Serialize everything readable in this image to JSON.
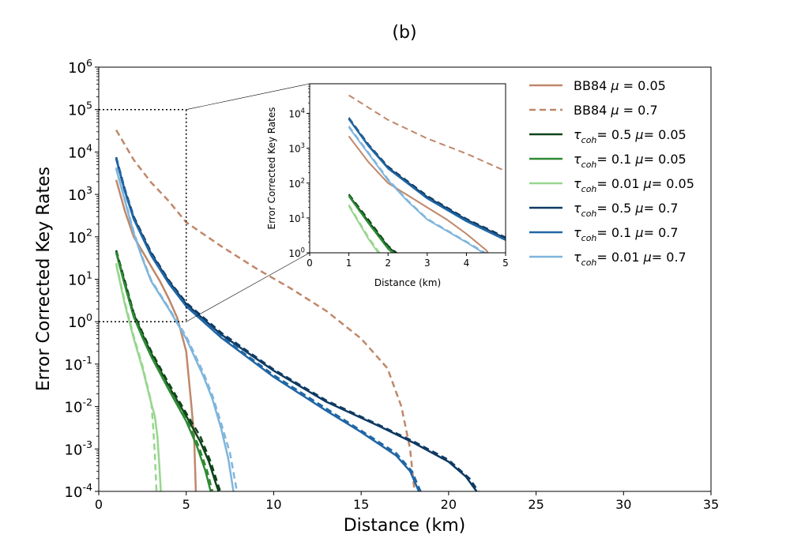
{
  "chart_data": {
    "type": "line",
    "title": "(b)",
    "xlabel": "Distance (km)",
    "ylabel": "Error Corrected Key Rates",
    "xlim": [
      0,
      35
    ],
    "ylim_log10": [
      -4,
      6
    ],
    "yscale": "log",
    "grid": false,
    "legend_position": "top-right",
    "xticks": [
      "0",
      "5",
      "10",
      "15",
      "20",
      "25",
      "30",
      "35"
    ],
    "yticks": [
      "10-4",
      "10-3",
      "10-2",
      "10-1",
      "100",
      "101",
      "102",
      "103",
      "104",
      "105",
      "106"
    ],
    "zoom_region": {
      "x": [
        0,
        5
      ],
      "y": [
        1,
        100000
      ]
    },
    "series": [
      {
        "name": "BB84 μ = 0.05",
        "legend": [
          "BB84 ",
          "μ",
          " = 0.05"
        ],
        "color": "#c0876a",
        "dash": "solid",
        "points": [
          [
            1,
            2200
          ],
          [
            1.5,
            400
          ],
          [
            2,
            100
          ],
          [
            2.5,
            45
          ],
          [
            3,
            20
          ],
          [
            3.5,
            9
          ],
          [
            4,
            3.5
          ],
          [
            4.5,
            1.2
          ],
          [
            5,
            0.2
          ],
          [
            5.3,
            0.01
          ],
          [
            5.45,
            0.002
          ],
          [
            5.55,
            0.0001
          ]
        ]
      },
      {
        "name": "BB84 μ = 0.7",
        "legend": [
          "BB84 ",
          "μ",
          " = 0.7"
        ],
        "color": "#c0876a",
        "dash": "dashed",
        "points": [
          [
            1,
            33000
          ],
          [
            2,
            6500
          ],
          [
            3,
            1900
          ],
          [
            4,
            700
          ],
          [
            5,
            220
          ],
          [
            7,
            60
          ],
          [
            9,
            18
          ],
          [
            11,
            6
          ],
          [
            13,
            1.8
          ],
          [
            15,
            0.4
          ],
          [
            16.5,
            0.08
          ],
          [
            17.3,
            0.01
          ],
          [
            17.8,
            0.001
          ],
          [
            18.05,
            0.0001
          ]
        ]
      },
      {
        "name": "τcoh= 0.5 μ= 0.05",
        "legend": [
          "τ",
          "coh",
          "= 0.5 ",
          "μ",
          "= 0.05"
        ],
        "color": "#10431a",
        "dash": "solid",
        "points": [
          [
            1,
            45
          ],
          [
            1.5,
            8
          ],
          [
            2,
            1.5
          ],
          [
            2.5,
            0.5
          ],
          [
            3,
            0.18
          ],
          [
            4,
            0.03
          ],
          [
            5,
            0.006
          ],
          [
            5.8,
            0.0015
          ],
          [
            6.3,
            0.0005
          ],
          [
            6.7,
            0.00015
          ],
          [
            6.85,
            0.0001
          ]
        ]
      },
      {
        "name": "τcoh= 0.1 μ= 0.05",
        "legend": [
          "τ",
          "coh",
          "= 0.1 ",
          "μ",
          "= 0.05"
        ],
        "color": "#2e8b34",
        "dash": "solid",
        "points": [
          [
            1,
            42
          ],
          [
            1.5,
            7
          ],
          [
            2,
            1.3
          ],
          [
            2.5,
            0.42
          ],
          [
            3,
            0.15
          ],
          [
            4,
            0.025
          ],
          [
            5,
            0.0045
          ],
          [
            5.6,
            0.0012
          ],
          [
            6.1,
            0.0003
          ],
          [
            6.4,
            0.0001
          ]
        ]
      },
      {
        "name": "τcoh= 0.01 μ= 0.05",
        "legend": [
          "τ",
          "coh",
          "= 0.01 ",
          "μ",
          "= 0.05"
        ],
        "color": "#97d68e",
        "dash": "solid",
        "points": [
          [
            1,
            22
          ],
          [
            1.5,
            2.5
          ],
          [
            2,
            0.4
          ],
          [
            2.5,
            0.08
          ],
          [
            3,
            0.012
          ],
          [
            3.2,
            0.006
          ],
          [
            3.35,
            0.002
          ],
          [
            3.45,
            0.0005
          ],
          [
            3.55,
            0.0001
          ]
        ]
      },
      {
        "name": "τcoh= 0.5 μ= 0.7",
        "legend": [
          "τ",
          "coh",
          "= 0.5 ",
          "μ",
          "= 0.7"
        ],
        "color": "#0e3a63",
        "dash": "solid",
        "points": [
          [
            1,
            7000
          ],
          [
            1.5,
            1200
          ],
          [
            2,
            280
          ],
          [
            3,
            40
          ],
          [
            4,
            9
          ],
          [
            5,
            2.6
          ],
          [
            7,
            0.5
          ],
          [
            10,
            0.07
          ],
          [
            13,
            0.013
          ],
          [
            16,
            0.0035
          ],
          [
            18,
            0.0014
          ],
          [
            20,
            0.0005
          ],
          [
            21,
            0.00022
          ],
          [
            21.6,
            0.0001
          ]
        ]
      },
      {
        "name": "τcoh= 0.1 μ= 0.7",
        "legend": [
          "τ",
          "coh",
          "= 0.1 ",
          "μ",
          "= 0.7"
        ],
        "color": "#2066a5",
        "dash": "solid",
        "points": [
          [
            1,
            6800
          ],
          [
            1.5,
            1150
          ],
          [
            2,
            260
          ],
          [
            3,
            36
          ],
          [
            4,
            8
          ],
          [
            5,
            2.3
          ],
          [
            7,
            0.42
          ],
          [
            10,
            0.05
          ],
          [
            13,
            0.008
          ],
          [
            15,
            0.0025
          ],
          [
            17,
            0.0007
          ],
          [
            17.8,
            0.0003
          ],
          [
            18.3,
            0.0001
          ]
        ]
      },
      {
        "name": "τcoh= 0.01 μ= 0.7",
        "legend": [
          "τ",
          "coh",
          "= 0.01 ",
          "μ",
          "= 0.7"
        ],
        "color": "#7fb5dc",
        "dash": "solid",
        "points": [
          [
            1,
            4000
          ],
          [
            1.5,
            700
          ],
          [
            2,
            120
          ],
          [
            2.5,
            30
          ],
          [
            3,
            9
          ],
          [
            4,
            2
          ],
          [
            5,
            0.4
          ],
          [
            6,
            0.05
          ],
          [
            6.5,
            0.015
          ],
          [
            7,
            0.003
          ],
          [
            7.4,
            0.0006
          ],
          [
            7.7,
            0.0001
          ]
        ]
      },
      {
        "name": "τcoh= 0.5 μ= 0.05 (dashed)",
        "color": "#10431a",
        "dash": "dashed",
        "points": [
          [
            1,
            48
          ],
          [
            1.5,
            9
          ],
          [
            2,
            1.6
          ],
          [
            2.5,
            0.55
          ],
          [
            3,
            0.2
          ],
          [
            4,
            0.035
          ],
          [
            5,
            0.007
          ],
          [
            5.8,
            0.002
          ],
          [
            6.4,
            0.0005
          ],
          [
            6.8,
            0.00015
          ],
          [
            6.95,
            0.0001
          ]
        ]
      },
      {
        "name": "τcoh= 0.1 μ= 0.05 (dashed)",
        "color": "#2e8b34",
        "dash": "dashed",
        "points": [
          [
            1,
            44
          ],
          [
            1.5,
            7.5
          ],
          [
            2,
            1.4
          ],
          [
            2.5,
            0.45
          ],
          [
            3,
            0.16
          ],
          [
            4,
            0.027
          ],
          [
            5,
            0.005
          ],
          [
            5.7,
            0.0012
          ],
          [
            6.2,
            0.0003
          ],
          [
            6.5,
            0.0001
          ]
        ]
      },
      {
        "name": "τcoh= 0.01 μ= 0.05 (dashed)",
        "color": "#97d68e",
        "dash": "dashed",
        "points": [
          [
            1,
            24
          ],
          [
            1.5,
            2.8
          ],
          [
            2,
            0.45
          ],
          [
            2.5,
            0.09
          ],
          [
            3,
            0.013
          ],
          [
            3.1,
            0.004
          ],
          [
            3.2,
            0.0008
          ],
          [
            3.3,
            0.0001
          ]
        ]
      },
      {
        "name": "τcoh= 0.5 μ= 0.7 (dashed)",
        "color": "#0e3a63",
        "dash": "dashed",
        "points": [
          [
            1,
            7500
          ],
          [
            1.5,
            1300
          ],
          [
            2,
            300
          ],
          [
            3,
            43
          ],
          [
            4,
            9.5
          ],
          [
            5,
            2.8
          ],
          [
            7,
            0.55
          ],
          [
            10,
            0.075
          ],
          [
            13,
            0.014
          ],
          [
            16,
            0.0037
          ],
          [
            18,
            0.0015
          ],
          [
            20,
            0.00055
          ],
          [
            21.2,
            0.0002
          ],
          [
            21.7,
            0.0001
          ]
        ]
      },
      {
        "name": "τcoh= 0.1 μ= 0.7 (dashed)",
        "color": "#2066a5",
        "dash": "dashed",
        "points": [
          [
            1,
            7200
          ],
          [
            1.5,
            1250
          ],
          [
            2,
            270
          ],
          [
            3,
            38
          ],
          [
            4,
            8.5
          ],
          [
            5,
            2.4
          ],
          [
            7,
            0.45
          ],
          [
            10,
            0.055
          ],
          [
            13,
            0.009
          ],
          [
            15,
            0.0027
          ],
          [
            17,
            0.0008
          ],
          [
            17.9,
            0.0003
          ],
          [
            18.4,
            0.0001
          ]
        ]
      },
      {
        "name": "τcoh= 0.01 μ= 0.7 (dashed)",
        "color": "#7fb5dc",
        "dash": "dashed",
        "points": [
          [
            1,
            4300
          ],
          [
            1.5,
            750
          ],
          [
            2,
            130
          ],
          [
            2.5,
            32
          ],
          [
            3,
            9.5
          ],
          [
            4,
            2.1
          ],
          [
            5,
            0.45
          ],
          [
            6,
            0.06
          ],
          [
            6.5,
            0.018
          ],
          [
            7,
            0.004
          ],
          [
            7.5,
            0.0008
          ],
          [
            7.9,
            0.0001
          ]
        ]
      }
    ],
    "inset": {
      "xlabel": "Distance (km)",
      "ylabel": "Error Corrected Key Rates",
      "xlim": [
        0,
        5
      ],
      "ylim_log10": [
        0,
        4.85
      ],
      "xticks": [
        "0",
        "1",
        "2",
        "3",
        "4",
        "5"
      ],
      "yticks": [
        "100",
        "101",
        "102",
        "103",
        "104"
      ]
    }
  }
}
